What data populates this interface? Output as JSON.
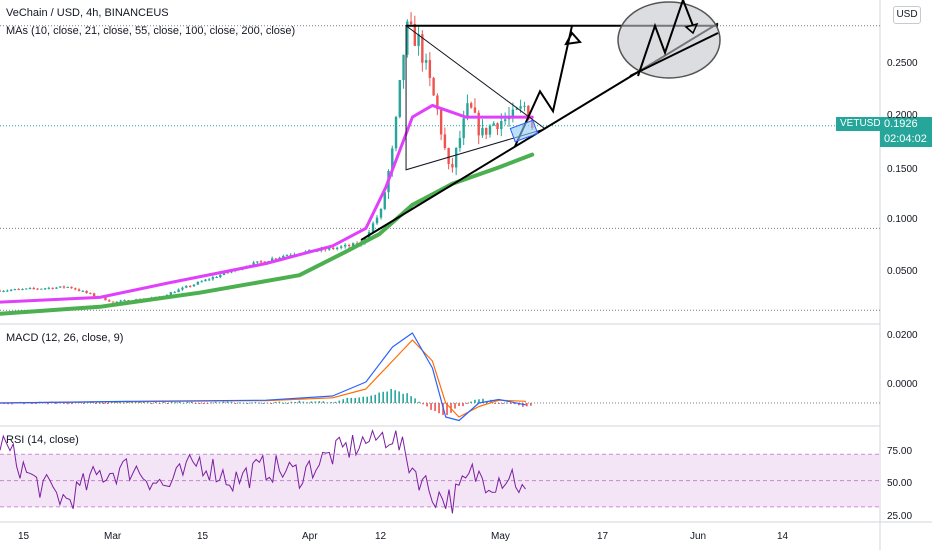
{
  "legend": {
    "title": "VeChain / USD, 4h, BINANCEUS",
    "mas": "MAs (10, close, 21, close, 55, close, 100, close, 200, close)",
    "macd": "MACD (12, 26, close, 9)",
    "rsi": "RSI (14, close)"
  },
  "currency_button": "USD",
  "symbol_tag": "VETUSD",
  "last_price": "0.1926",
  "countdown": "02:04:02",
  "colors": {
    "up": "#26a69a",
    "down": "#ef5350",
    "ma_fast": "#e040fb",
    "ma_slow": "#4caf50",
    "macd_line": "#2962ff",
    "signal_line": "#ff6d00",
    "rsi_line": "#7b1fa2",
    "rsi_band": "#f3e5f5"
  },
  "chart_data": [
    {
      "type": "candlestick",
      "title": "VeChain / USD, 4h, BINANCEUS",
      "price_axis_ticks": [
        "0.0500",
        "0.1000",
        "0.1500",
        "0.2000",
        "0.2500"
      ],
      "time_axis_ticks": [
        "15",
        "Mar",
        "15",
        "Apr",
        "12",
        "May",
        "17",
        "Jun",
        "14"
      ],
      "ylim": [
        0.025,
        0.3
      ],
      "last_price": 0.1926,
      "close_path": [
        [
          "15 Feb",
          0.053
        ],
        [
          "22 Feb",
          0.055
        ],
        [
          "1 Mar",
          0.042
        ],
        [
          "8 Mar",
          0.046
        ],
        [
          "15 Mar",
          0.06
        ],
        [
          "22 Mar",
          0.073
        ],
        [
          "29 Mar",
          0.083
        ],
        [
          "5 Apr",
          0.088
        ],
        [
          "9 Apr",
          0.092
        ],
        [
          "12 Apr",
          0.12
        ],
        [
          "14 Apr",
          0.175
        ],
        [
          "16 Apr",
          0.275
        ],
        [
          "18 Apr",
          0.265
        ],
        [
          "21 Apr",
          0.205
        ],
        [
          "23 Apr",
          0.15
        ],
        [
          "26 Apr",
          0.21
        ],
        [
          "28 Apr",
          0.185
        ],
        [
          "30 Apr",
          0.195
        ],
        [
          "3 May",
          0.2
        ],
        [
          "5 May",
          0.21
        ],
        [
          "6 May",
          0.1926
        ]
      ],
      "series": [
        {
          "name": "MA fast",
          "values": [
            [
              0,
              0.042
            ],
            [
              15,
              0.046
            ],
            [
              25,
              0.058
            ],
            [
              40,
              0.075
            ],
            [
              50,
              0.09
            ],
            [
              55,
              0.105
            ],
            [
              58,
              0.14
            ],
            [
              62,
              0.2
            ],
            [
              65,
              0.21
            ],
            [
              70,
              0.2
            ],
            [
              75,
              0.2
            ],
            [
              80,
              0.2
            ]
          ]
        },
        {
          "name": "MA slow",
          "values": [
            [
              0,
              0.032
            ],
            [
              15,
              0.038
            ],
            [
              30,
              0.05
            ],
            [
              45,
              0.065
            ],
            [
              52,
              0.085
            ],
            [
              57,
              0.1
            ],
            [
              62,
              0.125
            ],
            [
              68,
              0.143
            ],
            [
              75,
              0.157
            ],
            [
              80,
              0.168
            ]
          ]
        }
      ],
      "annotations": {
        "horizontal_resistance": 0.278,
        "triangle": [
          [
            "16 Apr",
            0.278
          ],
          [
            "16 Apr",
            0.155
          ],
          [
            "8 May",
            0.19
          ]
        ],
        "rising_support": [
          [
            "9 Apr",
            0.095
          ],
          [
            "2 Jun",
            0.28
          ]
        ],
        "projected_zigzag": [
          [
            0.175,
            0.222,
            0.205,
            0.278
          ],
          [
            0.235,
            0.278,
            0.255,
            0.3
          ]
        ]
      }
    },
    {
      "type": "line",
      "title": "MACD (12, 26, close, 9)",
      "y_axis_ticks": [
        "0.0000",
        "0.0200"
      ],
      "ylim": [
        -0.006,
        0.022
      ],
      "series": [
        {
          "name": "MACD",
          "values": [
            [
              0,
              0.0
            ],
            [
              20,
              0.0005
            ],
            [
              40,
              0.0008
            ],
            [
              50,
              0.002
            ],
            [
              55,
              0.006
            ],
            [
              59,
              0.016
            ],
            [
              62,
              0.02
            ],
            [
              65,
              0.01
            ],
            [
              67,
              -0.004
            ],
            [
              69,
              -0.005
            ],
            [
              72,
              0.0
            ],
            [
              75,
              0.001
            ],
            [
              79,
              -0.0005
            ]
          ]
        },
        {
          "name": "Signal",
          "values": [
            [
              0,
              0.0
            ],
            [
              20,
              0.0004
            ],
            [
              40,
              0.0007
            ],
            [
              50,
              0.0015
            ],
            [
              55,
              0.004
            ],
            [
              59,
              0.012
            ],
            [
              62,
              0.018
            ],
            [
              65,
              0.012
            ],
            [
              67,
              0.0
            ],
            [
              69,
              -0.004
            ],
            [
              72,
              -0.001
            ],
            [
              75,
              0.0008
            ],
            [
              79,
              0.0005
            ]
          ]
        }
      ]
    },
    {
      "type": "line",
      "title": "RSI (14, close)",
      "y_axis_ticks": [
        "25.00",
        "50.00",
        "75.00"
      ],
      "ylim": [
        20,
        90
      ],
      "band": [
        30,
        70
      ],
      "series": [
        {
          "name": "RSI",
          "values": [
            [
              0,
              80
            ],
            [
              5,
              50
            ],
            [
              10,
              35
            ],
            [
              15,
              55
            ],
            [
              20,
              60
            ],
            [
              25,
              45
            ],
            [
              30,
              65
            ],
            [
              35,
              50
            ],
            [
              40,
              60
            ],
            [
              45,
              55
            ],
            [
              50,
              70
            ],
            [
              55,
              80
            ],
            [
              59,
              85
            ],
            [
              62,
              60
            ],
            [
              65,
              40
            ],
            [
              68,
              35
            ],
            [
              71,
              55
            ],
            [
              74,
              50
            ],
            [
              77,
              55
            ],
            [
              79,
              38
            ]
          ]
        }
      ]
    }
  ]
}
